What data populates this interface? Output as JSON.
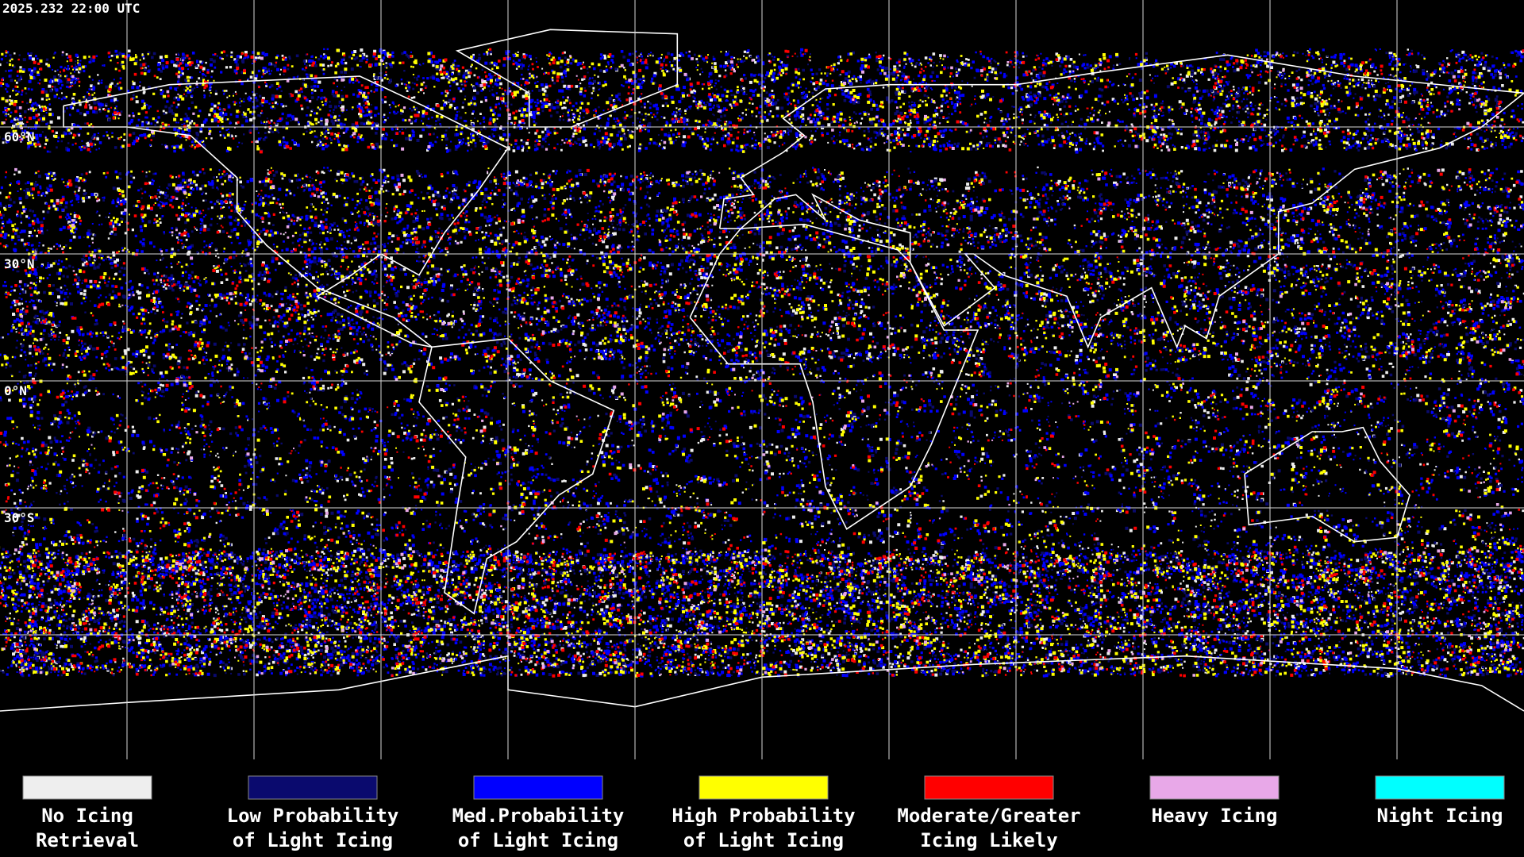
{
  "timestamp": "2025.232 22:00 UTC",
  "latitude_labels": [
    "60°N",
    "30°N",
    "0°N",
    "30°S"
  ],
  "legend": [
    {
      "label_lines": [
        "No Icing",
        "Retrieval"
      ],
      "color": "#eeeeee"
    },
    {
      "label_lines": [
        "Low Probability",
        "of Light Icing"
      ],
      "color": "#0a0a6e"
    },
    {
      "label_lines": [
        "Med.Probability",
        "of Light Icing"
      ],
      "color": "#0000ff"
    },
    {
      "label_lines": [
        "High Probability",
        "of Light Icing"
      ],
      "color": "#ffff00"
    },
    {
      "label_lines": [
        "Moderate/Greater",
        "Icing Likely"
      ],
      "color": "#ff0000"
    },
    {
      "label_lines": [
        "Heavy Icing"
      ],
      "color": "#e8a8e8"
    },
    {
      "label_lines": [
        "Night Icing"
      ],
      "color": "#00ffff"
    }
  ]
}
